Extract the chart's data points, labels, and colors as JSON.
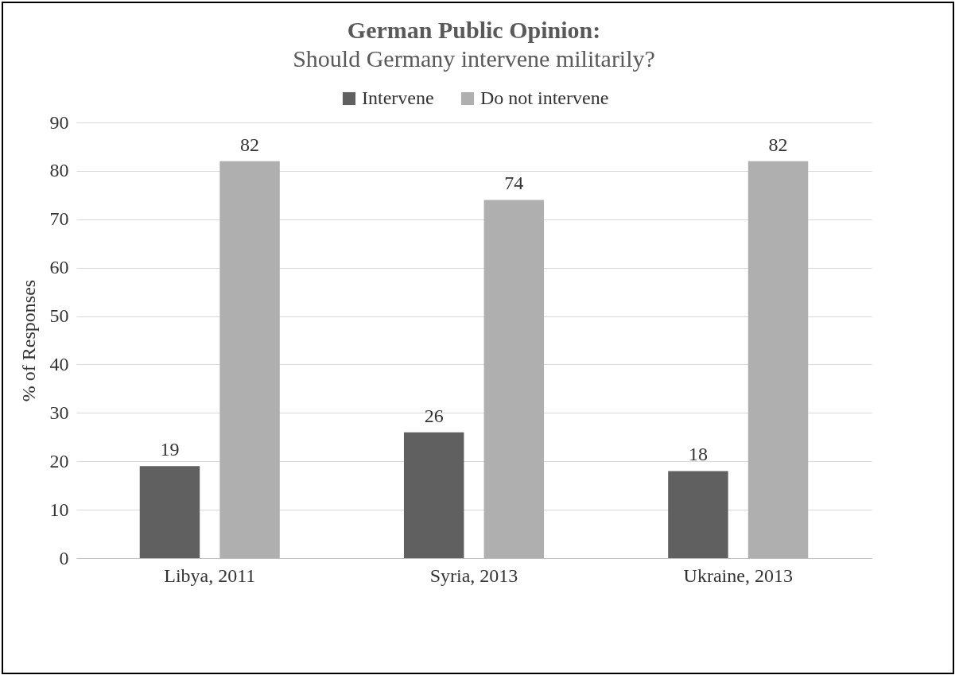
{
  "chart_data": {
    "type": "bar",
    "title": "German Public Opinion:",
    "subtitle": "Should Germany intervene militarily?",
    "ylabel": "% of Responses",
    "categories": [
      "Libya, 2011",
      "Syria, 2013",
      "Ukraine, 2013"
    ],
    "series": [
      {
        "name": "Intervene",
        "color": "#606060",
        "values": [
          19,
          26,
          18
        ]
      },
      {
        "name": "Do not intervene",
        "color": "#afafaf",
        "values": [
          82,
          74,
          82
        ]
      }
    ],
    "ylim": [
      0,
      90
    ],
    "yticks": [
      0,
      10,
      20,
      30,
      40,
      50,
      60,
      70,
      80,
      90
    ],
    "grid": "y",
    "legend": "top",
    "data_labels": true
  }
}
